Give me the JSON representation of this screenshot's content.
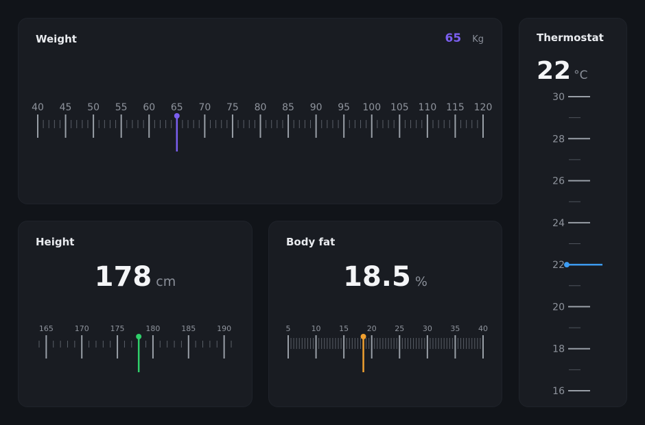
{
  "weight": {
    "title": "Weight",
    "value": 65,
    "value_text": "65",
    "unit": "Kg",
    "min": 40,
    "max": 120,
    "major_step": 5,
    "minor_step": 1,
    "accent": "#7b5ff0"
  },
  "height": {
    "title": "Height",
    "value": 178,
    "value_text": "178",
    "unit": "cm",
    "min": 164,
    "max": 191,
    "major_step": 5,
    "minor_step": 1,
    "accent": "#2fcf6a"
  },
  "body_fat": {
    "title": "Body fat",
    "value": 18.5,
    "value_text": "18.5",
    "unit": "%",
    "min": 5,
    "max": 40,
    "major_step": 5,
    "minor_step": 0.5,
    "accent": "#f0a030"
  },
  "thermostat": {
    "title": "Thermostat",
    "value": 22,
    "value_text": "22",
    "unit": "°C",
    "min": 16,
    "max": 30,
    "major_step": 2,
    "minor_step": 1,
    "accent": "#3d9cf2"
  }
}
